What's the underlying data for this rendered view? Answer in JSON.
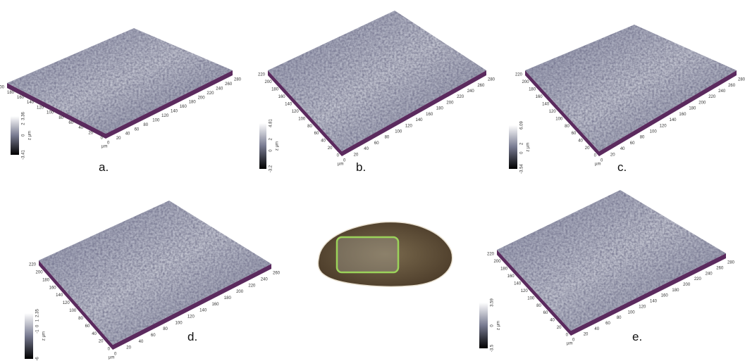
{
  "panels": [
    {
      "label": "a.",
      "axis_unit": "µm",
      "scale": {
        "max": 3.36,
        "min": -3.41,
        "ticks": [
          2,
          0
        ],
        "unit": "z µm"
      },
      "y_ticks": [
        200,
        180,
        160,
        140,
        120,
        100,
        80,
        60,
        40,
        20,
        0
      ],
      "x_ticks": [
        0,
        20,
        40,
        60,
        80,
        100,
        120,
        140,
        160,
        180,
        200,
        220,
        240,
        260,
        280
      ]
    },
    {
      "label": "b.",
      "axis_unit": "µm",
      "scale": {
        "max": 4.81,
        "min": -3.2,
        "ticks": [
          2,
          0
        ],
        "unit": "z µm"
      },
      "y_ticks": [
        220,
        200,
        180,
        160,
        140,
        120,
        100,
        80,
        60,
        40,
        20,
        0
      ],
      "x_ticks": [
        0,
        20,
        40,
        60,
        80,
        100,
        120,
        140,
        160,
        180,
        200,
        220,
        240,
        260,
        280
      ]
    },
    {
      "label": "c.",
      "axis_unit": "µm",
      "scale": {
        "max": 6.09,
        "min": -3.54,
        "ticks": [
          2,
          0
        ],
        "unit": "z µm"
      },
      "y_ticks": [
        220,
        200,
        180,
        160,
        140,
        120,
        100,
        80,
        60,
        40,
        20,
        0
      ],
      "x_ticks": [
        0,
        20,
        40,
        60,
        80,
        100,
        120,
        140,
        160,
        180,
        200,
        220,
        240,
        260,
        280
      ]
    },
    {
      "label": "d.",
      "axis_unit": "µm",
      "scale": {
        "max": 2.35,
        "min": -6,
        "ticks": [
          1,
          0,
          -1
        ],
        "unit": "z µm"
      },
      "y_ticks": [
        220,
        200,
        180,
        160,
        140,
        120,
        100,
        80,
        60,
        40,
        20,
        0
      ],
      "x_ticks": [
        0,
        20,
        40,
        60,
        80,
        100,
        120,
        140,
        160,
        180,
        200,
        220,
        240,
        260
      ]
    },
    {
      "label": "e.",
      "axis_unit": "µm",
      "scale": {
        "max": 3.59,
        "min": -3.5,
        "ticks": [
          0
        ],
        "unit": "z µm"
      },
      "y_ticks": [
        220,
        200,
        180,
        160,
        140,
        120,
        100,
        80,
        60,
        40,
        20,
        0
      ],
      "x_ticks": [
        0,
        20,
        40,
        60,
        80,
        100,
        120,
        140,
        160,
        180,
        200,
        220,
        240,
        260,
        280
      ]
    }
  ]
}
